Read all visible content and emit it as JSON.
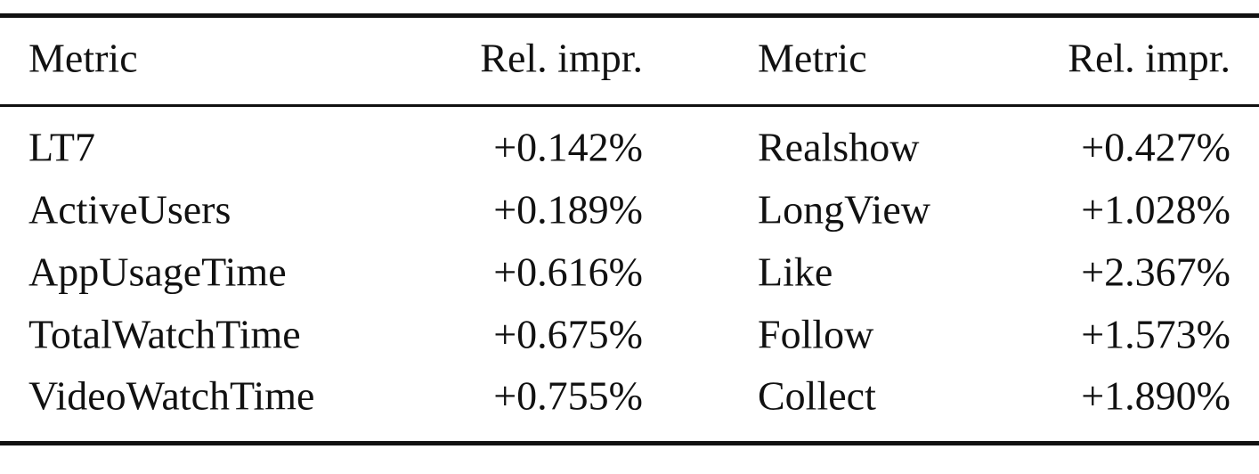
{
  "table": {
    "header": [
      "Metric",
      "Rel. impr.",
      "Metric",
      "Rel. impr."
    ],
    "rows": [
      [
        "LT7",
        "+0.142%",
        "Realshow",
        "+0.427%"
      ],
      [
        "ActiveUsers",
        "+0.189%",
        "LongView",
        "+1.028%"
      ],
      [
        "AppUsageTime",
        "+0.616%",
        "Like",
        "+2.367%"
      ],
      [
        "TotalWatchTime",
        "+0.675%",
        "Follow",
        "+1.573%"
      ],
      [
        "VideoWatchTime",
        "+0.755%",
        "Collect",
        "+1.890%"
      ]
    ]
  }
}
